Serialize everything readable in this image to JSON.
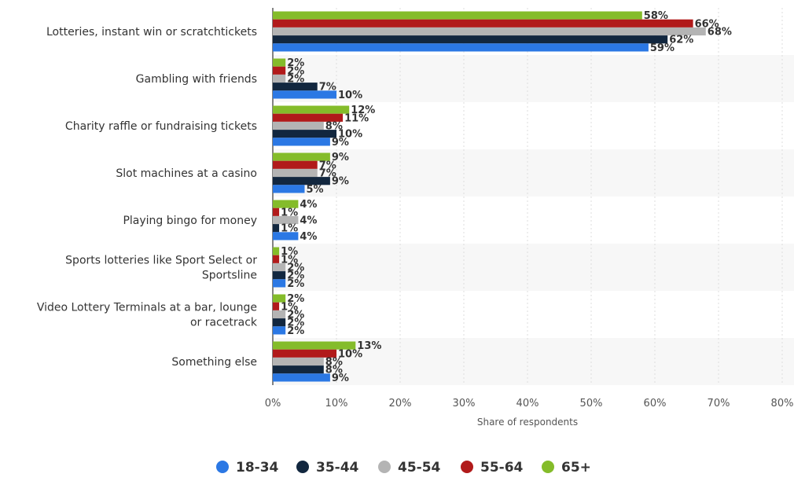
{
  "chart_data": {
    "type": "bar",
    "orientation": "horizontal",
    "xlabel": "Share of respondents",
    "xlim": [
      0,
      80
    ],
    "x_ticks": [
      0,
      10,
      20,
      30,
      40,
      50,
      60,
      70,
      80
    ],
    "tick_suffix": "%",
    "grid": true,
    "legend_position": "bottom",
    "categories": [
      [
        "Lotteries, instant win or scratchtickets"
      ],
      [
        "Gambling with friends"
      ],
      [
        "Charity raffle or fundraising tickets"
      ],
      [
        "Slot machines at a casino"
      ],
      [
        "Playing bingo for money"
      ],
      [
        "Sports lotteries like Sport Select or",
        "Sportsline"
      ],
      [
        "Video Lottery Terminals at a bar, lounge",
        "or racetrack"
      ],
      [
        "Something else"
      ]
    ],
    "series": [
      {
        "name": "18-34",
        "color": "#2b78e4",
        "values": [
          59,
          10,
          9,
          5,
          4,
          2,
          2,
          9
        ]
      },
      {
        "name": "35-44",
        "color": "#12273f",
        "values": [
          62,
          7,
          10,
          9,
          1,
          2,
          2,
          8
        ]
      },
      {
        "name": "45-54",
        "color": "#b4b4b4",
        "values": [
          68,
          2,
          8,
          7,
          4,
          2,
          2,
          8
        ]
      },
      {
        "name": "55-64",
        "color": "#b11a1a",
        "values": [
          66,
          2,
          11,
          7,
          1,
          1,
          1,
          10
        ]
      },
      {
        "name": "65+",
        "color": "#84bc2a",
        "values": [
          58,
          2,
          12,
          9,
          4,
          1,
          2,
          13
        ]
      }
    ]
  }
}
